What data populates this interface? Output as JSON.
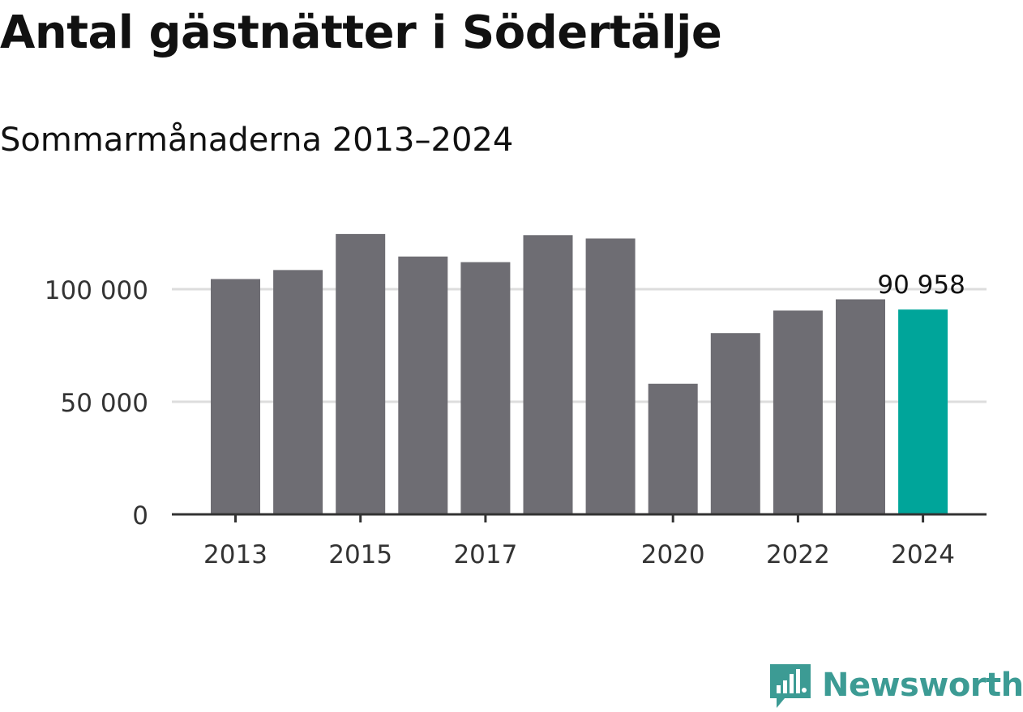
{
  "title": "Antal gästnätter i Södertälje",
  "subtitle": "Sommarmånaderna 2013–2024",
  "chart_data": {
    "type": "bar",
    "categories": [
      "2013",
      "2014",
      "2015",
      "2016",
      "2017",
      "2018",
      "2019",
      "2020",
      "2021",
      "2022",
      "2023",
      "2024"
    ],
    "values": [
      104500,
      108500,
      124500,
      114500,
      112000,
      124000,
      122500,
      58000,
      80500,
      90500,
      95500,
      90958
    ],
    "x_tick_labels": [
      "2013",
      "2015",
      "2017",
      "2020",
      "2022",
      "2024"
    ],
    "y_ticks": [
      0,
      50000,
      100000
    ],
    "y_tick_labels": [
      "0",
      "50 000",
      "100 000"
    ],
    "ylim": [
      0,
      130000
    ],
    "grid": true,
    "highlight_index": 11,
    "data_labels": [
      {
        "index": 11,
        "text": "90 958"
      }
    ],
    "xlabel": "",
    "ylabel": ""
  },
  "colors": {
    "bar": "#6e6d73",
    "highlight": "#00a59a",
    "grid": "#dddddd",
    "axis": "#333333",
    "tick_text": "#333333",
    "brand": "#3c9b94"
  },
  "brand": {
    "icon": "newsworthy-logo-icon",
    "name": "Newsworthy"
  }
}
